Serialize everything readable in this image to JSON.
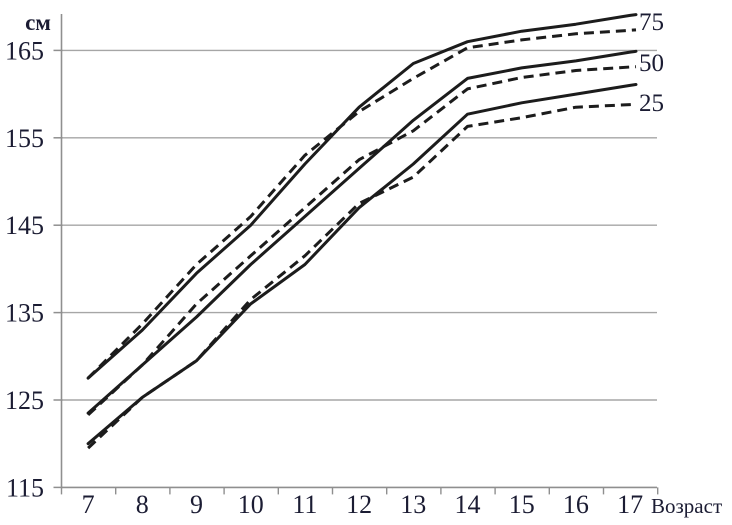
{
  "labels": {
    "y_unit": "см",
    "x_axis_title": "Возраст"
  },
  "colors": {
    "curve": "#1c1c1c",
    "grid": "#a6a6a6",
    "axis": "#8f8f8f",
    "text": "#1b1c33"
  },
  "chart_data": {
    "type": "line",
    "title": "",
    "xlabel": "Возраст",
    "ylabel": "см",
    "x": [
      7,
      8,
      9,
      10,
      11,
      12,
      13,
      14,
      15,
      16,
      17
    ],
    "xlim": [
      6.5,
      17.5
    ],
    "ylim": [
      115,
      170
    ],
    "yticks": [
      115,
      125,
      135,
      145,
      155,
      165
    ],
    "grid": true,
    "legend_position": "right-edge-labels",
    "right_labels": [
      "75",
      "50",
      "25"
    ],
    "series": [
      {
        "name": "percentile-75-solid",
        "label": "75",
        "line_style": "solid",
        "values": [
          127.5,
          133.0,
          139.5,
          145.0,
          152.0,
          158.5,
          163.5,
          166.0,
          167.2,
          168.0,
          169.0
        ]
      },
      {
        "name": "percentile-75-dashed",
        "label": "75",
        "line_style": "dashed",
        "values": [
          127.5,
          133.7,
          140.5,
          146.0,
          153.0,
          158.0,
          161.8,
          165.3,
          166.2,
          166.9,
          167.3
        ]
      },
      {
        "name": "percentile-50-solid",
        "label": "50",
        "line_style": "solid",
        "values": [
          123.5,
          129.0,
          134.5,
          140.5,
          146.0,
          151.5,
          157.0,
          161.8,
          163.0,
          163.8,
          164.8
        ]
      },
      {
        "name": "percentile-50-dashed",
        "label": "50",
        "line_style": "dashed",
        "values": [
          123.3,
          129.0,
          136.0,
          141.5,
          147.0,
          152.5,
          155.8,
          160.6,
          161.9,
          162.7,
          163.1
        ]
      },
      {
        "name": "percentile-25-solid",
        "label": "25",
        "line_style": "solid",
        "values": [
          120.0,
          125.3,
          129.5,
          136.0,
          140.5,
          147.0,
          152.0,
          157.7,
          159.0,
          160.0,
          161.0
        ]
      },
      {
        "name": "percentile-25-dashed",
        "label": "25",
        "line_style": "dashed",
        "values": [
          119.5,
          125.3,
          129.5,
          136.5,
          141.5,
          147.5,
          150.5,
          156.3,
          157.3,
          158.5,
          158.8
        ]
      }
    ]
  }
}
